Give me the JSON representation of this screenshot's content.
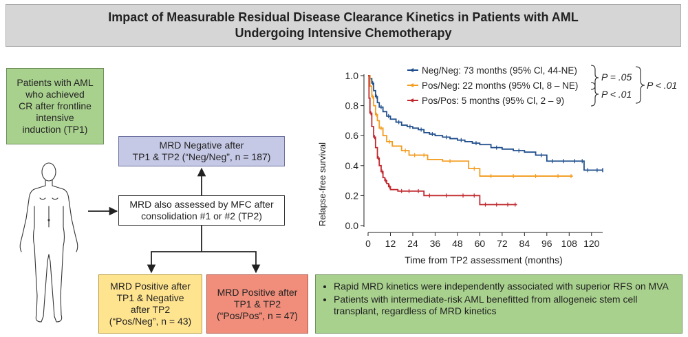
{
  "title": {
    "line1": "Impact of Measurable Residual Disease Clearance Kinetics in Patients with AML",
    "line2": "Undergoing Intensive Chemotherapy"
  },
  "flow": {
    "patients": [
      "Patients with AML",
      "who achieved",
      "CR after frontline",
      "intensive",
      "induction (TP1)"
    ],
    "mrd_also": [
      "MRD also assessed by MFC after",
      "consolidation #1 or #2 (TP2)"
    ],
    "neg_neg": [
      "MRD Negative after",
      "TP1 & TP2 (“Neg/Neg”, n = 187)"
    ],
    "pos_neg": [
      "MRD Positive after",
      "TP1 & Negative",
      "after TP2",
      "(“Pos/Neg”, n = 43)"
    ],
    "pos_pos": [
      "MRD Positive after",
      "TP1 & TP2",
      "(“Pos/Pos”, n = 47)"
    ]
  },
  "chart_data": {
    "type": "line",
    "ylabel": "Relapse-free survival",
    "xlabel": "Time from TP2 assessment (months)",
    "xlim": [
      0,
      126
    ],
    "ylim": [
      0,
      1.0
    ],
    "xticks": [
      "0",
      "12",
      "24",
      "36",
      "48",
      "60",
      "72",
      "84",
      "96",
      "108",
      "120"
    ],
    "yticks": [
      "0.0",
      "0.2",
      "0.4",
      "0.6",
      "0.8",
      "1.0"
    ],
    "series": [
      {
        "name": "Neg/Neg",
        "legend": "Neg/Neg: 73 months (95% Cl, 44-NE)",
        "color": "#1f4e8c",
        "x": [
          0,
          1,
          2,
          3,
          4,
          5,
          6,
          8,
          10,
          12,
          15,
          18,
          21,
          24,
          27,
          30,
          33,
          36,
          40,
          44,
          48,
          52,
          56,
          60,
          66,
          72,
          78,
          84,
          90,
          96,
          102,
          108,
          114,
          116,
          120,
          126
        ],
        "y": [
          1.0,
          0.98,
          0.95,
          0.9,
          0.86,
          0.82,
          0.79,
          0.76,
          0.73,
          0.71,
          0.69,
          0.67,
          0.66,
          0.65,
          0.64,
          0.62,
          0.61,
          0.6,
          0.59,
          0.58,
          0.57,
          0.56,
          0.55,
          0.54,
          0.52,
          0.51,
          0.5,
          0.49,
          0.47,
          0.43,
          0.43,
          0.43,
          0.43,
          0.37,
          0.37,
          0.37
        ]
      },
      {
        "name": "Pos/Neg",
        "legend": "Pos/Neg: 22 months (95% Cl, 8 – NE)",
        "color": "#f39c1f",
        "x": [
          0,
          1,
          2,
          3,
          4,
          5,
          6,
          8,
          10,
          13,
          18,
          22,
          28,
          32,
          40,
          48,
          54,
          60,
          72,
          84,
          96,
          108,
          110
        ],
        "y": [
          1.0,
          0.93,
          0.86,
          0.8,
          0.74,
          0.7,
          0.65,
          0.6,
          0.56,
          0.53,
          0.5,
          0.47,
          0.47,
          0.44,
          0.43,
          0.43,
          0.38,
          0.33,
          0.33,
          0.33,
          0.33,
          0.33,
          0.33
        ]
      },
      {
        "name": "Pos/Pos",
        "legend": "Pos/Pos: 5 months (95% Cl, 2 – 9)",
        "color": "#c0282d",
        "x": [
          0,
          0.5,
          1,
          2,
          3,
          4,
          5,
          6,
          7,
          8,
          9,
          10,
          11,
          12,
          16,
          20,
          24,
          30,
          36,
          48,
          54,
          60,
          66,
          72,
          78,
          80
        ],
        "y": [
          1.0,
          0.85,
          0.75,
          0.66,
          0.59,
          0.52,
          0.45,
          0.4,
          0.36,
          0.32,
          0.3,
          0.28,
          0.26,
          0.24,
          0.23,
          0.23,
          0.23,
          0.2,
          0.2,
          0.2,
          0.2,
          0.14,
          0.14,
          0.14,
          0.14,
          0.14
        ]
      }
    ],
    "annotations": {
      "p_neg_pos": "P = .05",
      "p_pos_pos": "P < .01",
      "p_overall": "P < .01"
    }
  },
  "summary": {
    "bullets": [
      "Rapid MRD kinetics were independently associated with superior RFS on MVA",
      "Patients with intermediate-risk AML benefitted from allogeneic stem cell transplant, regardless of MRD kinetics"
    ]
  },
  "colors": {
    "green": "#a9d18e",
    "blue": "#c6c9e6",
    "yellow": "#ffe48f",
    "red": "#f08e7b",
    "title_bg": "#d6d6d6"
  }
}
